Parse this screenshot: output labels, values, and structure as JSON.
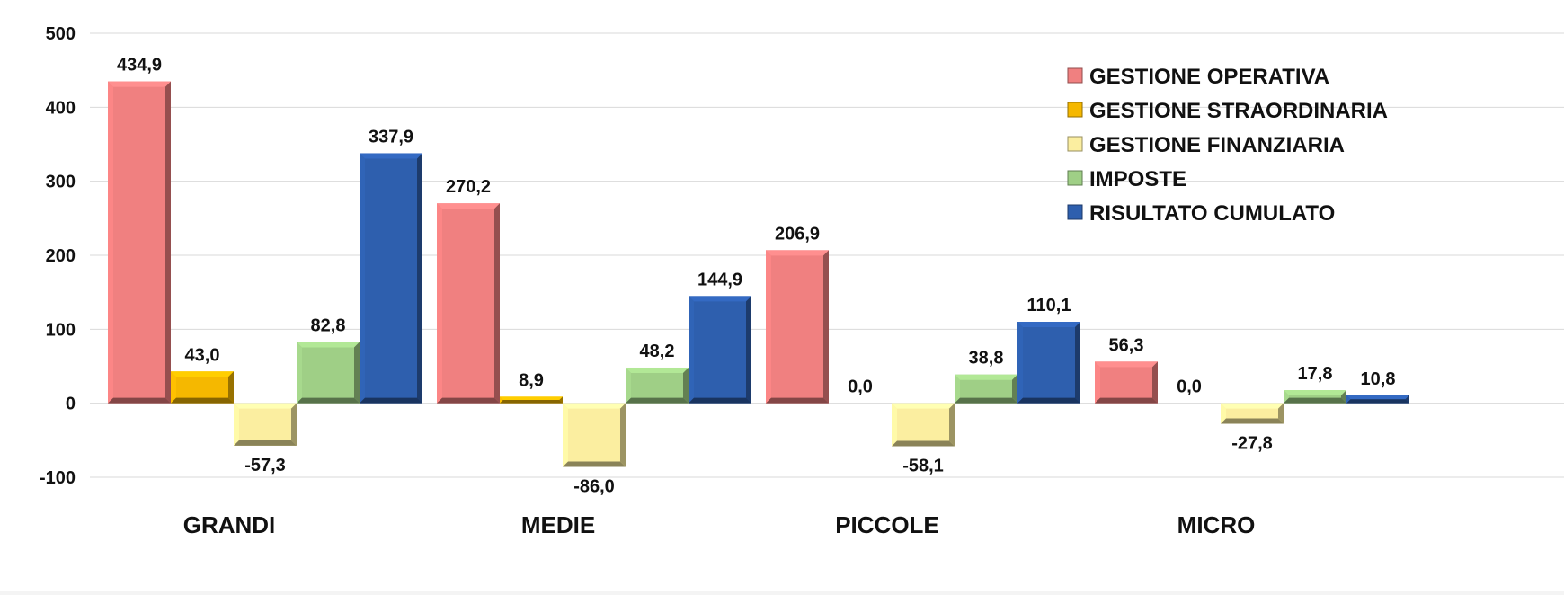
{
  "chart_data": {
    "type": "bar",
    "title": "",
    "xlabel": "",
    "ylabel": "",
    "ylim": [
      -100,
      500
    ],
    "yticks": [
      -100,
      0,
      100,
      200,
      300,
      400,
      500
    ],
    "grid": true,
    "legend_position": "top-right",
    "categories": [
      "GRANDI",
      "MEDIE",
      "PICCOLE",
      "MICRO"
    ],
    "series": [
      {
        "name": "GESTIONE OPERATIVA",
        "color": "#f08080",
        "values": [
          434.9,
          270.2,
          206.9,
          56.3
        ],
        "labels": [
          "434,9",
          "270,2",
          "206,9",
          "56,3"
        ]
      },
      {
        "name": "GESTIONE STRAORDINARIA",
        "color": "#f5b800",
        "values": [
          43.0,
          8.9,
          0.0,
          0.0
        ],
        "labels": [
          "43,0",
          "8,9",
          "0,0",
          "0,0"
        ]
      },
      {
        "name": "GESTIONE FINANZIARIA",
        "color": "#fbeea0",
        "values": [
          -57.3,
          -86.0,
          -58.1,
          -27.8
        ],
        "labels": [
          "-57,3",
          "-86,0",
          "-58,1",
          "-27,8"
        ]
      },
      {
        "name": "IMPOSTE",
        "color": "#9fcf86",
        "values": [
          82.8,
          48.2,
          38.8,
          17.8
        ],
        "labels": [
          "82,8",
          "48,2",
          "38,8",
          "17,8"
        ]
      },
      {
        "name": "RISULTATO CUMULATO",
        "color": "#2e5fae",
        "values": [
          337.9,
          144.9,
          110.1,
          10.8
        ],
        "labels": [
          "337,9",
          "144,9",
          "110,1",
          "10,8"
        ]
      }
    ]
  }
}
